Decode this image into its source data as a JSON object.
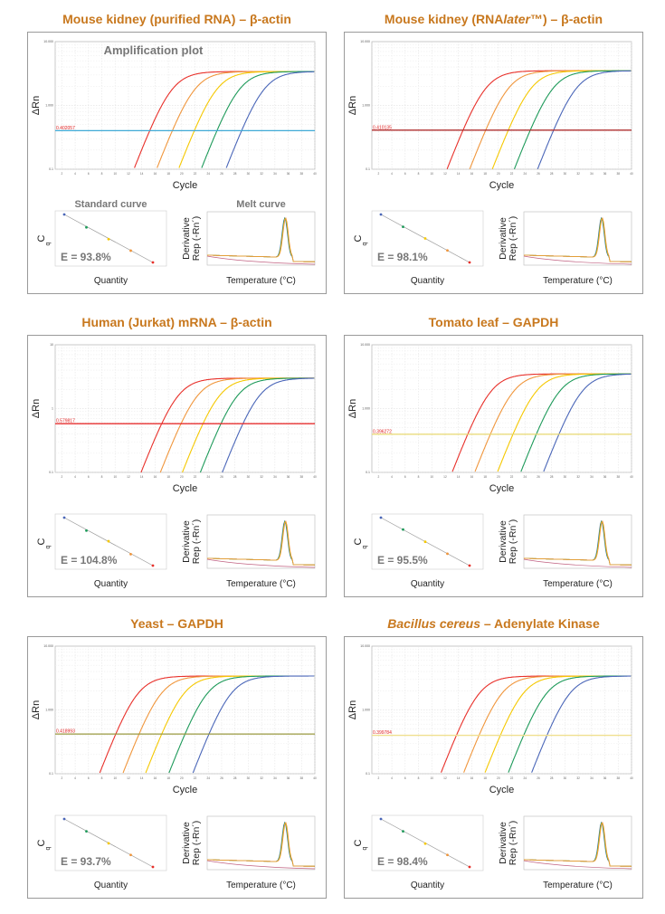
{
  "colors": {
    "title": "#c8781e",
    "series": [
      "#e8302a",
      "#f0963c",
      "#f5c800",
      "#1e9a5a",
      "#4a66b8"
    ]
  },
  "chart_data": [
    {
      "title_parts": [
        {
          "text": "Mouse kidney (purified RNA) – β-actin",
          "italic": false
        }
      ],
      "amplification": {
        "type": "line",
        "title": "Amplification plot",
        "xlabel": "Cycle",
        "ylabel": "ΔRn",
        "yscale": "log",
        "xlim": [
          1,
          40
        ],
        "ylim": [
          0.1,
          10
        ],
        "y_ticks": [
          "10.000",
          "1.000",
          "0.1"
        ],
        "x_ticks": [
          2,
          4,
          6,
          8,
          10,
          12,
          14,
          16,
          18,
          20,
          22,
          24,
          26,
          28,
          30,
          32,
          34,
          36,
          38,
          40
        ],
        "plateau": 3.4,
        "threshold": {
          "label": "0.402057",
          "value": 0.402057,
          "color": "#3fa9d6"
        },
        "ct": [
          15.2,
          18.6,
          21.9,
          25.3,
          29.0
        ]
      },
      "standard_curve": {
        "type": "scatter",
        "title": "Standard curve",
        "ylabel": "C",
        "ylabel_sub": "q",
        "xlabel": "Quantity",
        "efficiency": "E = 93.8%"
      },
      "melt_curve": {
        "type": "line",
        "title": "Melt curve",
        "ylabel": [
          "Derivative",
          "Rep (-Rn´)"
        ],
        "xlabel": "Temperature (°C)"
      }
    },
    {
      "title_parts": [
        {
          "text": "Mouse kidney (RNA",
          "italic": false
        },
        {
          "text": "later",
          "italic": true
        },
        {
          "text": "™) – β-actin",
          "italic": false
        }
      ],
      "amplification": {
        "type": "line",
        "title": "",
        "xlabel": "Cycle",
        "ylabel": "ΔRn",
        "yscale": "log",
        "xlim": [
          1,
          40
        ],
        "ylim": [
          0.1,
          10
        ],
        "y_ticks": [
          "10.000",
          "1.000",
          "0.1"
        ],
        "x_ticks": [
          2,
          4,
          6,
          8,
          10,
          12,
          14,
          16,
          18,
          20,
          22,
          24,
          26,
          28,
          30,
          32,
          34,
          36,
          38,
          40
        ],
        "plateau": 3.5,
        "threshold": {
          "label": "0.410135",
          "value": 0.410135,
          "color": "#b03030"
        },
        "ct": [
          14.7,
          18.1,
          21.5,
          24.8,
          28.3
        ]
      },
      "standard_curve": {
        "type": "scatter",
        "title": "",
        "ylabel": "C",
        "ylabel_sub": "q",
        "xlabel": "Quantity",
        "efficiency": "E = 98.1%"
      },
      "melt_curve": {
        "type": "line",
        "title": "",
        "ylabel": [
          "Derivative",
          "Rep (-Rn´)"
        ],
        "xlabel": "Temperature (°C)"
      }
    },
    {
      "title_parts": [
        {
          "text": "Human (Jurkat) mRNA – β-actin",
          "italic": false
        }
      ],
      "amplification": {
        "type": "line",
        "title": "",
        "xlabel": "Cycle",
        "ylabel": "ΔRn",
        "yscale": "log",
        "xlim": [
          1,
          40
        ],
        "ylim": [
          0.1,
          10
        ],
        "y_ticks": [
          "10",
          "1",
          "0.1"
        ],
        "x_ticks": [
          2,
          4,
          6,
          8,
          10,
          12,
          14,
          16,
          18,
          20,
          22,
          24,
          26,
          28,
          30,
          32,
          34,
          36,
          38,
          40
        ],
        "plateau": 3.0,
        "threshold": {
          "label": "0.579817",
          "value": 0.579817,
          "color": "#e83030"
        },
        "ct": [
          17.0,
          19.9,
          23.2,
          25.9,
          29.2
        ]
      },
      "standard_curve": {
        "type": "scatter",
        "title": "",
        "ylabel": "C",
        "ylabel_sub": "q",
        "xlabel": "Quantity",
        "efficiency": "E = 104.8%"
      },
      "melt_curve": {
        "type": "line",
        "title": "",
        "ylabel": [
          "Derivative",
          "Rep (-Rn´)"
        ],
        "xlabel": "Temperature (°C)"
      }
    },
    {
      "title_parts": [
        {
          "text": "Tomato leaf – GAPDH",
          "italic": false
        }
      ],
      "amplification": {
        "type": "line",
        "title": "",
        "xlabel": "Cycle",
        "ylabel": "ΔRn",
        "yscale": "log",
        "xlim": [
          1,
          40
        ],
        "ylim": [
          0.1,
          10
        ],
        "y_ticks": [
          "10.000",
          "1.000",
          "0.1"
        ],
        "x_ticks": [
          2,
          4,
          6,
          8,
          10,
          12,
          14,
          16,
          18,
          20,
          22,
          24,
          26,
          28,
          30,
          32,
          34,
          36,
          38,
          40
        ],
        "plateau": 3.5,
        "threshold": {
          "label": "0.396272",
          "value": 0.396272,
          "color": "#e8d870"
        },
        "ct": [
          15.4,
          18.8,
          22.2,
          25.7,
          29.1
        ]
      },
      "standard_curve": {
        "type": "scatter",
        "title": "",
        "ylabel": "C",
        "ylabel_sub": "q",
        "xlabel": "Quantity",
        "efficiency": "E = 95.5%"
      },
      "melt_curve": {
        "type": "line",
        "title": "",
        "ylabel": [
          "Derivative",
          "Rep (-Rn´)"
        ],
        "xlabel": "Temperature (°C)"
      }
    },
    {
      "title_parts": [
        {
          "text": "Yeast – GAPDH",
          "italic": false
        }
      ],
      "amplification": {
        "type": "line",
        "title": "",
        "xlabel": "Cycle",
        "ylabel": "ΔRn",
        "yscale": "log",
        "xlim": [
          1,
          40
        ],
        "ylim": [
          0.1,
          10
        ],
        "y_ticks": [
          "10.000",
          "1.000",
          "0.1"
        ],
        "x_ticks": [
          2,
          4,
          6,
          8,
          10,
          12,
          14,
          16,
          18,
          20,
          22,
          24,
          26,
          28,
          30,
          32,
          34,
          36,
          38,
          40
        ],
        "plateau": 3.4,
        "threshold": {
          "label": "0.418993",
          "value": 0.418993,
          "color": "#9a9a40"
        },
        "ct": [
          10.1,
          13.6,
          17.0,
          20.5,
          24.1
        ]
      },
      "standard_curve": {
        "type": "scatter",
        "title": "",
        "ylabel": "C",
        "ylabel_sub": "q",
        "xlabel": "Quantity",
        "efficiency": "E = 93.7%"
      },
      "melt_curve": {
        "type": "line",
        "title": "",
        "ylabel": [
          "Derivative",
          "Rep (-Rn´)"
        ],
        "xlabel": "Temperature (°C)"
      }
    },
    {
      "title_parts": [
        {
          "text": "Bacillus cereus",
          "italic": true
        },
        {
          "text": " – Adenylate Kinase",
          "italic": false
        }
      ],
      "amplification": {
        "type": "line",
        "title": "",
        "xlabel": "Cycle",
        "ylabel": "ΔRn",
        "yscale": "log",
        "xlim": [
          1,
          40
        ],
        "ylim": [
          0.1,
          10
        ],
        "y_ticks": [
          "10.000",
          "1.000",
          "0.1"
        ],
        "x_ticks": [
          2,
          4,
          6,
          8,
          10,
          12,
          14,
          16,
          18,
          20,
          22,
          24,
          26,
          28,
          30,
          32,
          34,
          36,
          38,
          40
        ],
        "plateau": 3.4,
        "threshold": {
          "label": "0.399784",
          "value": 0.399784,
          "color": "#f0e090"
        },
        "ct": [
          13.7,
          17.1,
          20.3,
          23.8,
          27.3
        ]
      },
      "standard_curve": {
        "type": "scatter",
        "title": "",
        "ylabel": "C",
        "ylabel_sub": "q",
        "xlabel": "Quantity",
        "efficiency": "E = 98.4%"
      },
      "melt_curve": {
        "type": "line",
        "title": "",
        "ylabel": [
          "Derivative",
          "Rep (-Rn´)"
        ],
        "xlabel": "Temperature (°C)"
      }
    }
  ]
}
